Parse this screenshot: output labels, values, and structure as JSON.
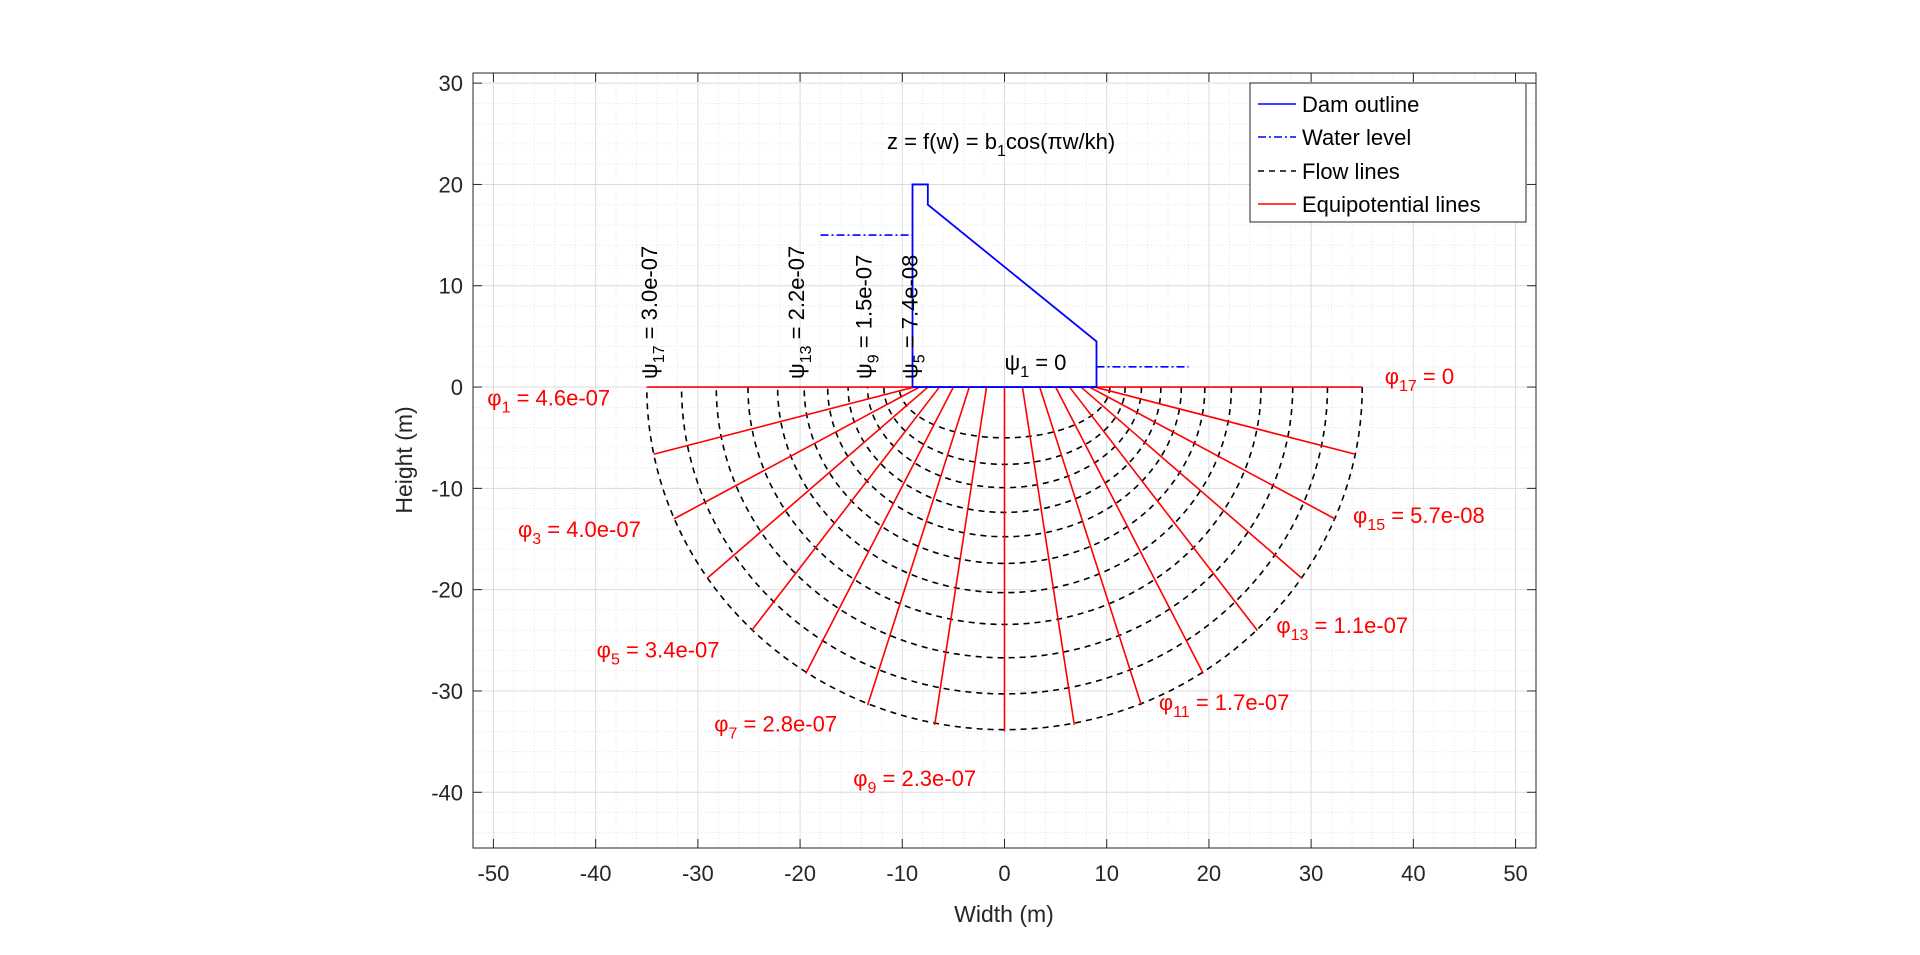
{
  "chart_data": {
    "type": "line",
    "title": "",
    "xlabel": "Width (m)",
    "ylabel": "Height (m)",
    "xlim": [
      -52,
      52
    ],
    "ylim": [
      -45.5,
      31
    ],
    "xticks": [
      -50,
      -40,
      -30,
      -20,
      -10,
      0,
      10,
      20,
      30,
      40,
      50
    ],
    "xtick_labels": [
      "-50",
      "-40",
      "-30",
      "-20",
      "-10",
      "0",
      "10",
      "20",
      "30",
      "40",
      "50"
    ],
    "yticks": [
      30,
      20,
      10,
      0,
      -10,
      -20,
      -30,
      -40
    ],
    "ytick_labels": [
      "30",
      "20",
      "10",
      "0",
      "-10",
      "-20",
      "-30",
      "-40"
    ],
    "grid": true,
    "minor_grid": true,
    "legend_position": "top-right",
    "colors": {
      "dam": "#0000ff",
      "water": "#0000ff",
      "flow": "#000000",
      "equipotential": "#ff0000"
    },
    "series": [
      {
        "name": "Dam outline",
        "style": "solid",
        "color": "#0000ff",
        "points": [
          [
            -9,
            0
          ],
          [
            -9,
            20
          ],
          [
            -7.5,
            20
          ],
          [
            -7.5,
            18
          ],
          [
            9,
            4.5
          ],
          [
            9,
            0
          ],
          [
            -9,
            0
          ]
        ]
      },
      {
        "name": "Water level",
        "style": "dashdot",
        "color": "#0000ff",
        "segments": [
          [
            [
              -18,
              15
            ],
            [
              -9,
              15
            ]
          ],
          [
            [
              9,
              2
            ],
            [
              18,
              2
            ]
          ]
        ]
      },
      {
        "name": "Flow lines",
        "style": "dashed",
        "color": "#000000",
        "half_width": 9,
        "radii": [
          9.0,
          10.3,
          11.8,
          13.4,
          15.3,
          17.3,
          19.6,
          22.2,
          25.1,
          28.2,
          31.6,
          35.0
        ]
      },
      {
        "name": "Equipotential lines",
        "style": "solid",
        "color": "#ff0000",
        "half_width": 9,
        "outer_a": 35,
        "outer_b": 34,
        "angles_deg": [
          0,
          11.25,
          22.5,
          33.75,
          45,
          56.25,
          67.5,
          78.75,
          90,
          101.25,
          112.5,
          123.75,
          135,
          146.25,
          157.5,
          168.75,
          180
        ]
      }
    ],
    "annotations": {
      "equation": {
        "pre": "z = f(w) = b",
        "sub": "1",
        "post": "cos(πw/kh)",
        "x": -11.5,
        "y": 23.5
      },
      "psi": [
        {
          "sym": "ψ",
          "sub": "17",
          "val": " = 3.0e-07",
          "x": -34.0,
          "y": 0.8,
          "rotate": -90
        },
        {
          "sym": "ψ",
          "sub": "13",
          "val": " = 2.2e-07",
          "x": -19.6,
          "y": 0.8,
          "rotate": -90
        },
        {
          "sym": "ψ",
          "sub": "9",
          "val": " = 1.5e-07",
          "x": -13.0,
          "y": 0.8,
          "rotate": -90
        },
        {
          "sym": "ψ",
          "sub": "5",
          "val": " = 7.4e-08",
          "x": -8.5,
          "y": 0.8,
          "rotate": -90
        },
        {
          "sym": "ψ",
          "sub": "1",
          "val": " = 0",
          "x": 0.0,
          "y": 1.7,
          "rotate": 0
        }
      ],
      "phi": [
        {
          "sym": "φ",
          "sub": "1",
          "val": " = 4.6e-07",
          "x": -50.6,
          "y": -1.8
        },
        {
          "sym": "φ",
          "sub": "3",
          "val": " = 4.0e-07",
          "x": -47.6,
          "y": -14.8
        },
        {
          "sym": "φ",
          "sub": "5",
          "val": " = 3.4e-07",
          "x": -39.9,
          "y": -26.7
        },
        {
          "sym": "φ",
          "sub": "7",
          "val": " = 2.8e-07",
          "x": -28.4,
          "y": -34.0
        },
        {
          "sym": "φ",
          "sub": "9",
          "val": " = 2.3e-07",
          "x": -14.8,
          "y": -39.4
        },
        {
          "sym": "φ",
          "sub": "11",
          "val": " = 1.7e-07",
          "x": 15.1,
          "y": -31.9
        },
        {
          "sym": "φ",
          "sub": "13",
          "val": " = 1.1e-07",
          "x": 26.6,
          "y": -24.3
        },
        {
          "sym": "φ",
          "sub": "15",
          "val": " = 5.7e-08",
          "x": 34.1,
          "y": -13.4
        },
        {
          "sym": "φ",
          "sub": "17",
          "val": " = 0",
          "x": 37.2,
          "y": 0.3
        }
      ]
    }
  }
}
